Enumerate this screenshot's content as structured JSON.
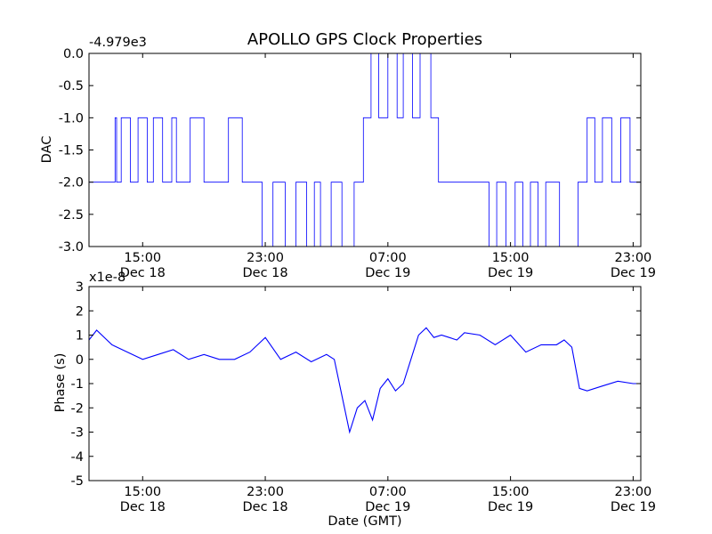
{
  "chart_data": [
    {
      "type": "line",
      "title": "APOLLO GPS Clock Properties",
      "xlabel": "",
      "ylabel": "DAC",
      "offset_label": "-4.979e3",
      "ylim": [
        -3.0,
        0.0
      ],
      "y_ticks": [
        "0.0",
        "-0.5",
        "-1.0",
        "-1.5",
        "-2.0",
        "-2.5",
        "-3.0"
      ],
      "x_ticks": [
        {
          "time": "15:00",
          "date": "Dec 18"
        },
        {
          "time": "23:00",
          "date": "Dec 18"
        },
        {
          "time": "07:00",
          "date": "Dec 19"
        },
        {
          "time": "15:00",
          "date": "Dec 19"
        },
        {
          "time": "23:00",
          "date": "Dec 19"
        }
      ],
      "xlim_hours_from_dec18_0000": [
        11.5,
        47.5
      ],
      "series": [
        {
          "color": "#0000ff",
          "x_hours_from_dec18_0000": [
            11.5,
            13.2,
            13.3,
            13.6,
            14.2,
            14.7,
            15.3,
            15.7,
            16.3,
            16.9,
            17.2,
            18.1,
            19.0,
            20.6,
            21.5,
            22.1,
            22.8,
            23.5,
            24.3,
            25.0,
            25.7,
            26.2,
            26.6,
            27.3,
            28.0,
            28.8,
            29.4,
            29.9,
            30.4,
            31.0,
            31.6,
            32.0,
            32.6,
            33.1,
            33.8,
            34.3,
            35.0,
            35.8,
            36.8,
            37.6,
            38.1,
            38.7,
            39.3,
            39.8,
            40.3,
            40.8,
            41.3,
            42.2,
            42.9,
            43.4,
            44.0,
            44.5,
            45.0,
            45.6,
            46.2,
            46.8,
            47.5
          ],
          "y_values": [
            -2.0,
            -1.0,
            -2.0,
            -1.0,
            -2.0,
            -1.0,
            -2.0,
            -1.0,
            -2.0,
            -1.0,
            -2.0,
            -1.0,
            -2.0,
            -1.0,
            -2.0,
            -2.0,
            -3.0,
            -2.0,
            -3.0,
            -2.0,
            -3.0,
            -2.0,
            -3.0,
            -2.0,
            -3.0,
            -2.0,
            -1.0,
            0.0,
            -1.0,
            0.0,
            -1.0,
            0.0,
            -1.0,
            0.0,
            -1.0,
            -2.0,
            -2.0,
            -2.0,
            -2.0,
            -3.0,
            -2.0,
            -3.0,
            -2.0,
            -3.0,
            -2.0,
            -3.0,
            -2.0,
            -3.0,
            -3.0,
            -2.0,
            -1.0,
            -2.0,
            -1.0,
            -2.0,
            -1.0,
            -2.0,
            -1.0
          ]
        }
      ]
    },
    {
      "type": "line",
      "title": "",
      "xlabel": "Date (GMT)",
      "ylabel": "Phase (s)",
      "offset_label": "x1e-8",
      "ylim": [
        -5,
        3
      ],
      "y_ticks": [
        "3",
        "2",
        "1",
        "0",
        "-1",
        "-2",
        "-3",
        "-4",
        "-5"
      ],
      "x_ticks": [
        {
          "time": "15:00",
          "date": "Dec 18"
        },
        {
          "time": "23:00",
          "date": "Dec 18"
        },
        {
          "time": "07:00",
          "date": "Dec 19"
        },
        {
          "time": "15:00",
          "date": "Dec 19"
        },
        {
          "time": "23:00",
          "date": "Dec 19"
        }
      ],
      "xlim_hours_from_dec18_0000": [
        11.5,
        47.5
      ],
      "series": [
        {
          "color": "#0000ff",
          "x_hours_from_dec18_0000": [
            11.5,
            12.0,
            13.0,
            14.0,
            15.0,
            16.0,
            17.0,
            18.0,
            19.0,
            20.0,
            21.0,
            22.0,
            23.0,
            24.0,
            25.0,
            26.0,
            27.0,
            27.5,
            28.0,
            28.5,
            29.0,
            29.5,
            30.0,
            30.5,
            31.0,
            31.5,
            32.0,
            32.5,
            33.0,
            33.5,
            34.0,
            34.5,
            35.0,
            35.5,
            36.0,
            37.0,
            38.0,
            39.0,
            40.0,
            41.0,
            42.0,
            42.5,
            43.0,
            43.5,
            44.0,
            45.0,
            46.0,
            47.0,
            47.5
          ],
          "y_values": [
            0.8,
            1.2,
            0.6,
            0.3,
            0.0,
            0.2,
            0.4,
            0.0,
            0.2,
            0.0,
            0.0,
            0.3,
            0.9,
            0.0,
            0.3,
            -0.1,
            0.2,
            0.0,
            -1.5,
            -3.0,
            -2.0,
            -1.7,
            -2.5,
            -1.2,
            -0.8,
            -1.3,
            -1.0,
            0.0,
            1.0,
            1.3,
            0.9,
            1.0,
            0.9,
            0.8,
            1.1,
            1.0,
            0.6,
            1.0,
            0.3,
            0.6,
            0.6,
            0.8,
            0.5,
            -1.2,
            -1.3,
            -1.1,
            -0.9,
            -1.0,
            -1.0
          ]
        }
      ]
    }
  ]
}
